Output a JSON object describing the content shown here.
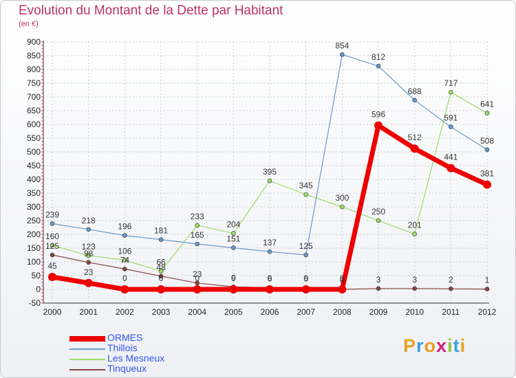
{
  "header": {
    "title": "Evolution du Montant de la Dette par Habitant",
    "subtitle": "(en €)"
  },
  "logo": {
    "text": "Proxiti",
    "colors": [
      "#e8a020",
      "#3aa0dd",
      "#e8a020",
      "#d02080",
      "#8cc63f",
      "#3aa0dd",
      "#e8a020"
    ]
  },
  "chart_data": {
    "type": "line",
    "categories": [
      "2000",
      "2001",
      "2002",
      "2003",
      "2004",
      "2005",
      "2006",
      "2007",
      "2008",
      "2009",
      "2010",
      "2011",
      "2012"
    ],
    "ylim": [
      -50,
      900
    ],
    "yticks": [
      -50,
      0,
      50,
      100,
      150,
      200,
      250,
      300,
      350,
      400,
      450,
      500,
      550,
      600,
      650,
      700,
      750,
      800,
      850,
      900
    ],
    "grid": true,
    "legend_position": "bottom-left",
    "series": [
      {
        "name": "ORMES",
        "color": "#ee0000",
        "width": 7,
        "marker": 6,
        "values": [
          45,
          23,
          0,
          0,
          0,
          0,
          0,
          0,
          0,
          596,
          512,
          441,
          381
        ],
        "labels": [
          "45",
          "23",
          "0",
          "0",
          "0",
          "0",
          "0",
          "0",
          "0",
          "596",
          "512",
          "441",
          "381"
        ]
      },
      {
        "name": "Thillois",
        "color": "#6699cc",
        "width": 1.2,
        "marker": 3,
        "values": [
          239,
          218,
          196,
          181,
          165,
          151,
          137,
          125,
          854,
          812,
          688,
          591,
          508
        ],
        "labels": [
          "239",
          "218",
          "196",
          "181",
          "165",
          "151",
          "137",
          "125",
          "854",
          "812",
          "688",
          "591",
          "508"
        ]
      },
      {
        "name": "Les Mesneux",
        "color": "#99dd66",
        "width": 1.2,
        "marker": 3,
        "values": [
          160,
          123,
          106,
          66,
          233,
          204,
          395,
          345,
          300,
          250,
          201,
          717,
          641
        ],
        "labels": [
          "160",
          "123",
          "106",
          "66",
          "233",
          "204",
          "395",
          "345",
          "300",
          "250",
          "201",
          "717",
          "641"
        ]
      },
      {
        "name": "Tinqueux",
        "color": "#884444",
        "width": 1.2,
        "marker": 3,
        "values": [
          125,
          98,
          74,
          48,
          23,
          9,
          6,
          6,
          0,
          3,
          3,
          2,
          1
        ],
        "labels": [
          "125",
          "98",
          "74",
          "48",
          "23",
          "9",
          "6",
          "6",
          "0",
          "3",
          "3",
          "2",
          "1"
        ]
      }
    ]
  }
}
